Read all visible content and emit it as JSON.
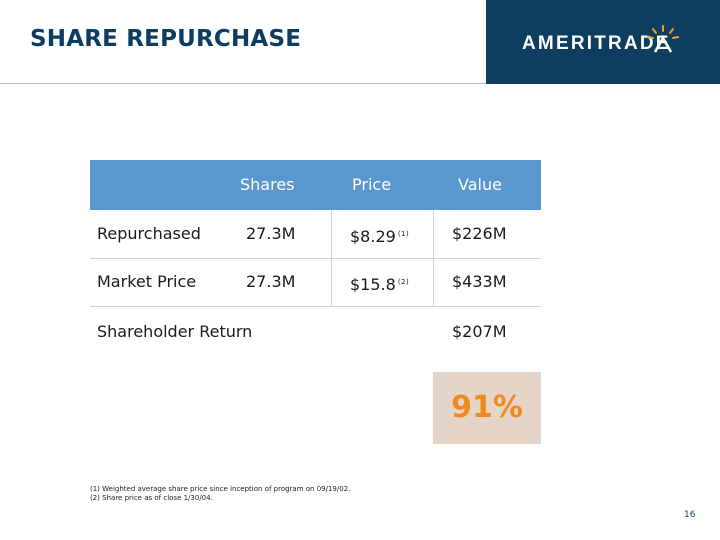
{
  "slide": {
    "title": "SHARE REPURCHASE",
    "page_number": "16"
  },
  "logo": {
    "text": "AMERITRADE",
    "colors": {
      "background": "#0d3e5f",
      "text": "#ffffff",
      "mark": "#f39c23"
    }
  },
  "table": {
    "columns": [
      "Shares",
      "Price",
      "Value"
    ],
    "rows": [
      {
        "label": "Repurchased",
        "shares": "27.3M",
        "price": "$8.29",
        "price_note": "(1)",
        "value": "$226M"
      },
      {
        "label": "Market Price",
        "shares": "27.3M",
        "price": "$15.8",
        "price_note": "(2)",
        "value": "$433M"
      }
    ],
    "summary": {
      "label": "Shareholder Return",
      "value": "$207M",
      "percent": "91%"
    },
    "colors": {
      "header_band": "#5b97cf",
      "percent_box": "#e5d5c9",
      "percent_text": "#f08a1e"
    }
  },
  "footnotes": [
    "(1) Weighted average share price since inception of program on 09/19/02.",
    "(2) Share price as of close 1/30/04."
  ]
}
